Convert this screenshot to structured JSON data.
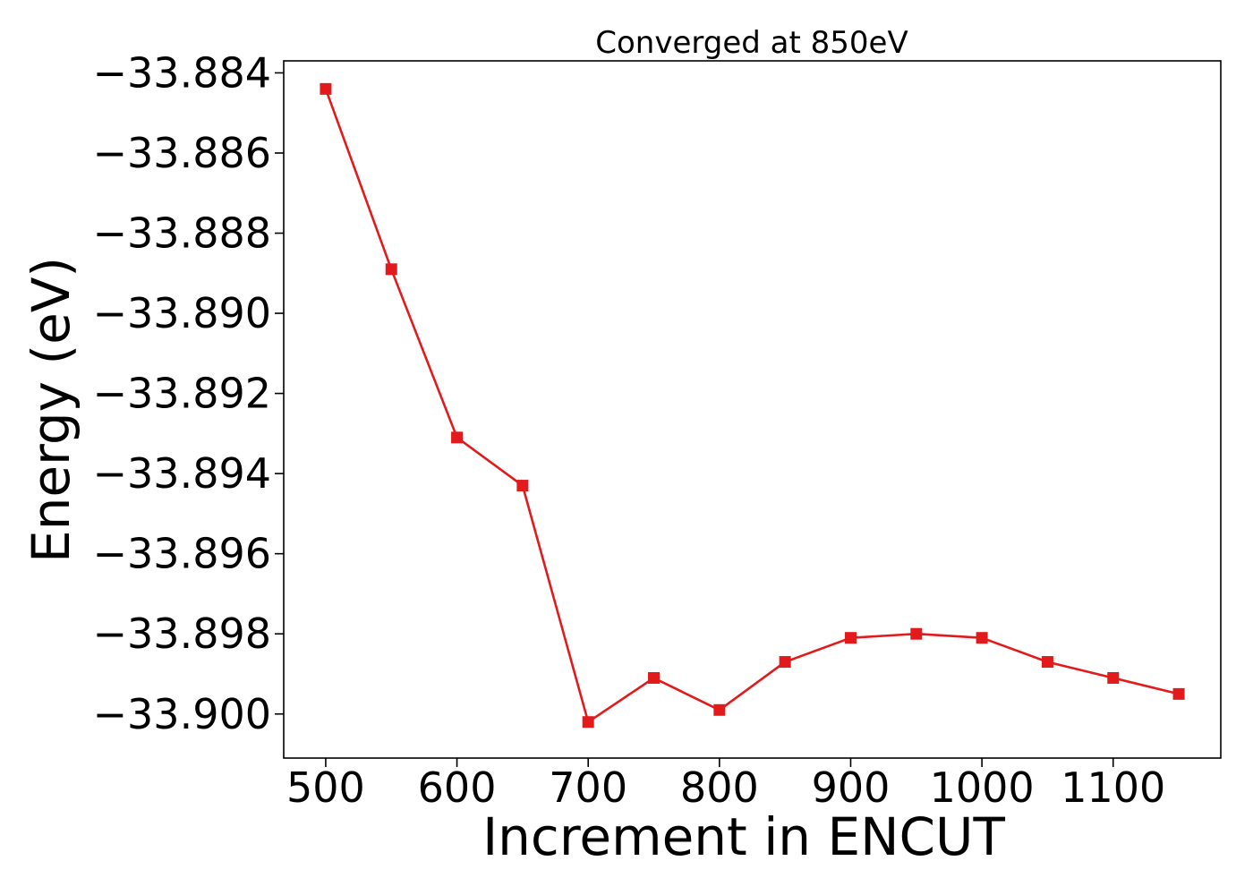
{
  "chart_data": {
    "type": "line",
    "title": "Converged at 850eV",
    "xlabel": "Increment in ENCUT",
    "ylabel": "Energy (eV)",
    "xlim": [
      468,
      1182
    ],
    "ylim": [
      -33.9011,
      -33.8837
    ],
    "x_ticks": [
      500,
      600,
      700,
      800,
      900,
      1000,
      1100
    ],
    "y_ticks": [
      -33.884,
      -33.886,
      -33.888,
      -33.89,
      -33.892,
      -33.894,
      -33.896,
      -33.898,
      -33.9
    ],
    "y_tick_labels": [
      "−33.884",
      "−33.886",
      "−33.888",
      "−33.890",
      "−33.892",
      "−33.894",
      "−33.896",
      "−33.898",
      "−33.900"
    ],
    "grid": false,
    "series": [
      {
        "color": "#e31a1c",
        "marker": "square",
        "x": [
          500,
          550,
          600,
          650,
          700,
          750,
          800,
          850,
          900,
          950,
          1000,
          1050,
          1100,
          1150
        ],
        "y": [
          -33.8844,
          -33.8889,
          -33.8931,
          -33.8943,
          -33.9002,
          -33.8991,
          -33.8999,
          -33.8987,
          -33.8981,
          -33.898,
          -33.8981,
          -33.8987,
          -33.8991,
          -33.8995
        ]
      }
    ]
  }
}
